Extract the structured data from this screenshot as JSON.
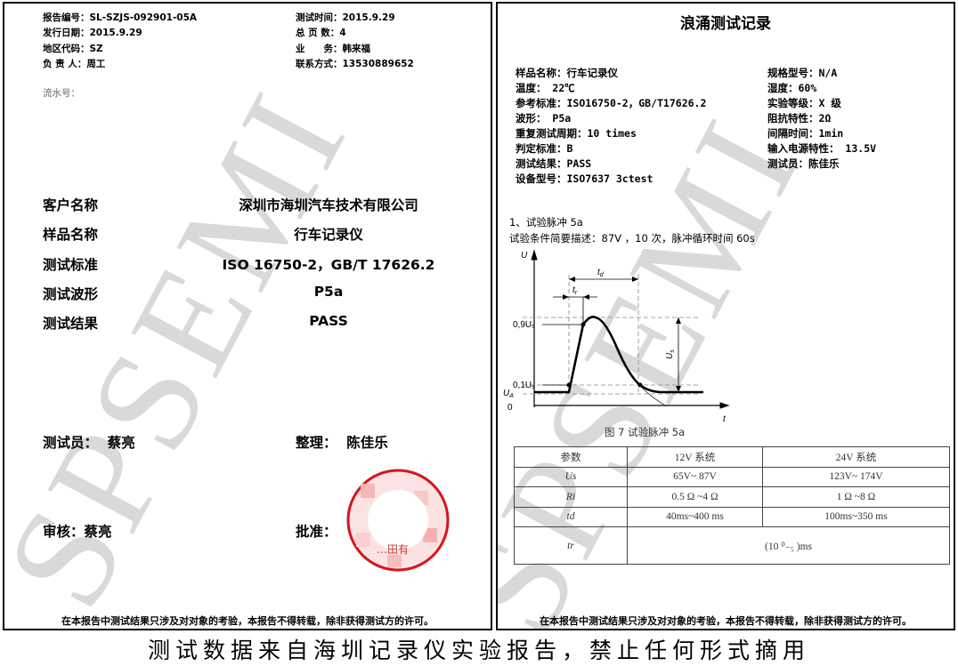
{
  "left_page": {
    "header": [
      {
        "label": "报告编号：",
        "value": "SL-SZJS-092901-05A"
      },
      {
        "label": "测试时间：",
        "value": "2015.9.29"
      },
      {
        "label": "发行日期：",
        "value": "2015.9.29"
      },
      {
        "label": "总 页 数：",
        "value": "4"
      },
      {
        "label": "地区代码：",
        "value": "SZ"
      },
      {
        "label": "业　　务：",
        "value": "韩来福"
      },
      {
        "label": "负 责 人：",
        "value": "周工"
      },
      {
        "label": "联系方式：",
        "value": "13530889652"
      }
    ],
    "serial_label": "流水号：",
    "fields": [
      {
        "label": "客户名称",
        "value": "深圳市海圳汽车技术有限公司"
      },
      {
        "label": "样品名称",
        "value": "行车记录仪"
      },
      {
        "label": "测试标准",
        "value": "ISO 16750-2，GB/T 17626.2"
      },
      {
        "label": "测试波形",
        "value": "P5a"
      },
      {
        "label": "测试结果",
        "value": "PASS"
      }
    ],
    "tester": "测试员：  蔡亮",
    "organizer": "整理：  陈佳乐",
    "reviewer": "审核：蔡亮",
    "approver": "批准：",
    "stamp_text": "…田有",
    "footer": "在本报告中测试结果只涉及对对象的考验，本报告不得转载，除非获得测试方的许可。"
  },
  "right_page": {
    "title": "浪涌测试记录",
    "info_left": [
      "样品名称：行车记录仪",
      "温度： 22℃",
      "参考标准：ISO16750-2，GB/T17626.2",
      "波形： P5a",
      "重复测试周期：10 times",
      "判定标准：B",
      "测试结果：PASS",
      "设备型号：ISO7637  3ctest"
    ],
    "info_right": [
      "规格型号：N/A",
      "湿度：60%",
      "实验等级：X 级",
      "阻抗特性：2Ω",
      "间隔时间：1min",
      "输入电源特性： 13.5V",
      "测试员：陈佳乐"
    ],
    "section": "1、试验脉冲 5a",
    "conditions": "试验条件简要描述：87V ，10 次，脉冲循环时间 60s",
    "diagram": {
      "y_axis": "U",
      "x_axis": "t",
      "td": "t",
      "td_sub": "d",
      "tr": "t",
      "tr_sub": "r",
      "l09": "0,9U",
      "l09_sub": "s",
      "l01": "0,1U",
      "l01_sub": "s",
      "ua": "U",
      "ua_sub": "A",
      "zero": "0",
      "us": "U",
      "us_sub": "s"
    },
    "figure_caption": "图 7  试验脉冲 5a",
    "table": {
      "headers": [
        "参数",
        "12V 系统",
        "24V 系统"
      ],
      "rows": [
        [
          "Us",
          "65V~ 87V",
          "123V~ 174V"
        ],
        [
          "Ri",
          "0.5 Ω ~4 Ω",
          "1 Ω ~8 Ω"
        ],
        [
          "td",
          "40ms~400 ms",
          "100ms~350 ms"
        ],
        [
          "tr",
          "(10 ⁰₋₅ )ms"
        ]
      ]
    },
    "footer": "在本报告中测试结果只涉及对对象的考验，本报告不得转载，除非获得测试方的许可。"
  },
  "watermark": "SPSEMI",
  "caption": "测试数据来自海圳记录仪实验报告，禁止任何形式摘用",
  "colors": {
    "stamp": "#d9141b",
    "watermark": "#d8d8d8"
  }
}
